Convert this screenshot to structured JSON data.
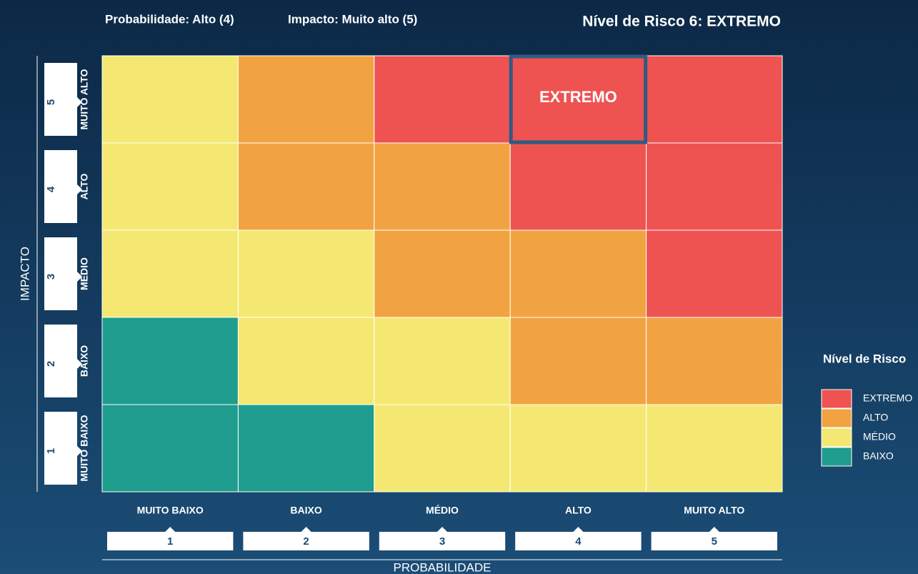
{
  "header": {
    "probability": "Probabilidade: Alto (4)",
    "impact": "Impacto: Muito alto (5)",
    "risk_level": "Nível de Risco 6: EXTREMO"
  },
  "impact_axis": {
    "title": "IMPACTO",
    "levels": [
      {
        "number": 5,
        "label": "MUITO ALTO"
      },
      {
        "number": 4,
        "label": "ALTO"
      },
      {
        "number": 3,
        "label": "MÉDIO"
      },
      {
        "number": 2,
        "label": "BAIXO"
      },
      {
        "number": 1,
        "label": "MUITO BAIXO"
      }
    ]
  },
  "probability_axis": {
    "title": "PROBABILIDADE",
    "levels": [
      {
        "number": 1,
        "label": "MUITO BAIXO"
      },
      {
        "number": 2,
        "label": "BAIXO"
      },
      {
        "number": 3,
        "label": "MÉDIO"
      },
      {
        "number": 4,
        "label": "ALTO"
      },
      {
        "number": 5,
        "label": "MUITO ALTO"
      }
    ]
  },
  "matrix": {
    "rows": [
      {
        "cells": [
          {
            "color": "#f5e872"
          },
          {
            "color": "#f2a341"
          },
          {
            "color": "#ee5352"
          },
          {
            "color": "#ee5352",
            "label": "EXTREMO",
            "highlighted": true
          },
          {
            "color": "#ee5352"
          }
        ]
      },
      {
        "cells": [
          {
            "color": "#f5e872"
          },
          {
            "color": "#f2a341"
          },
          {
            "color": "#f2a341"
          },
          {
            "color": "#ee5352"
          },
          {
            "color": "#ee5352"
          }
        ]
      },
      {
        "cells": [
          {
            "color": "#f5e872"
          },
          {
            "color": "#f5e872"
          },
          {
            "color": "#f2a341"
          },
          {
            "color": "#f2a341"
          },
          {
            "color": "#ee5352"
          }
        ]
      },
      {
        "cells": [
          {
            "color": "#1f9d8e"
          },
          {
            "color": "#f5e872"
          },
          {
            "color": "#f5e872"
          },
          {
            "color": "#f2a341"
          },
          {
            "color": "#f2a341"
          }
        ]
      },
      {
        "cells": [
          {
            "color": "#1f9d8e"
          },
          {
            "color": "#1f9d8e"
          },
          {
            "color": "#f5e872"
          },
          {
            "color": "#f5e872"
          },
          {
            "color": "#f5e872"
          }
        ]
      }
    ]
  },
  "legend": {
    "title": "Nível de Risco",
    "items": [
      {
        "name": "EXTREMO",
        "color": "#ee5352"
      },
      {
        "name": "ALTO",
        "color": "#f2a341"
      },
      {
        "name": "MÉDIO",
        "color": "#f5e872"
      },
      {
        "name": "BAIXO",
        "color": "#1f9d8e"
      }
    ]
  }
}
